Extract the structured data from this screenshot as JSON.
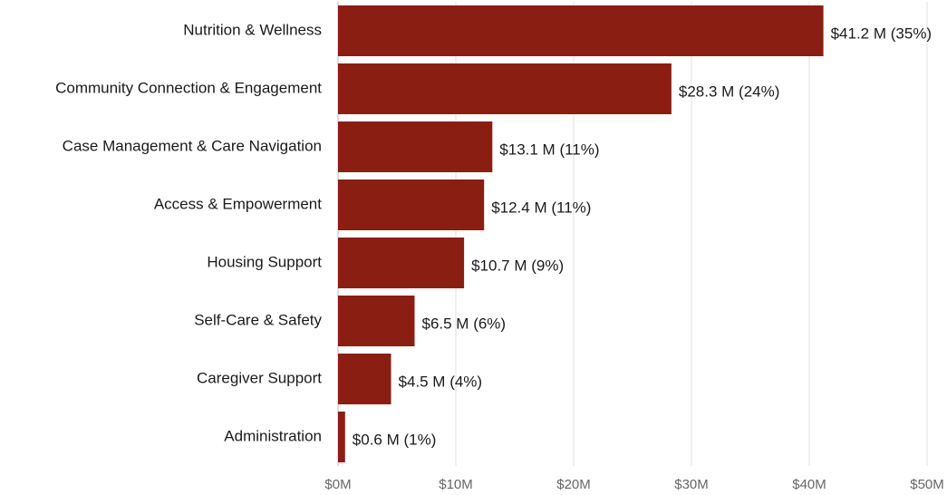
{
  "chart_data": {
    "type": "hbar",
    "categories": [
      "Nutrition & Wellness",
      "Community Connection & Engagement",
      "Case Management & Care Navigation",
      "Access & Empowerment",
      "Housing Support",
      "Self-Care & Safety",
      "Caregiver Support",
      "Administration"
    ],
    "values": [
      41.2,
      28.3,
      13.1,
      12.4,
      10.7,
      6.5,
      4.5,
      0.6
    ],
    "value_labels": [
      "$41.2 M (35%)",
      "$28.3 M (24%)",
      "$13.1 M (11%)",
      "$12.4 M (11%)",
      "$10.7 M (9%)",
      "$6.5 M (6%)",
      "$4.5 M (4%)",
      "$0.6 M (1%)"
    ],
    "color": "#8b1e12",
    "xlim": [
      0,
      50
    ],
    "xticks": [
      {
        "value": 0,
        "label": "$0M"
      },
      {
        "value": 10,
        "label": "$10M"
      },
      {
        "value": 20,
        "label": "$20M"
      },
      {
        "value": 30,
        "label": "$30M"
      },
      {
        "value": 40,
        "label": "$40M"
      },
      {
        "value": 50,
        "label": "$50M"
      }
    ],
    "grid": true
  }
}
